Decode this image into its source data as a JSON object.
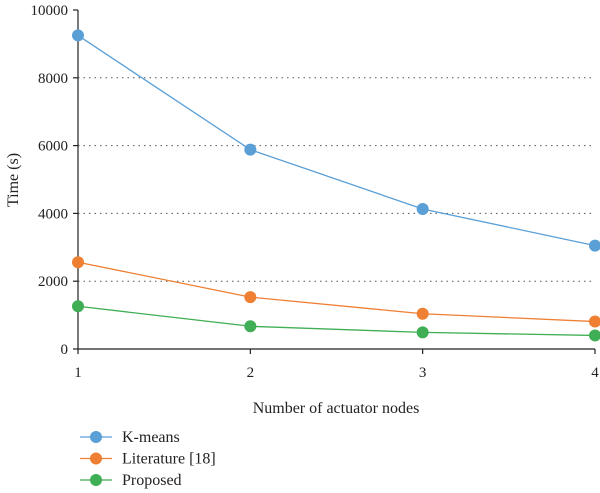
{
  "chart_data": {
    "type": "line",
    "title": "",
    "xlabel": "Number of actuator nodes",
    "ylabel": "Time (s)",
    "x": [
      1,
      2,
      3,
      4
    ],
    "xlim": [
      1,
      4
    ],
    "ylim": [
      0,
      10000
    ],
    "xticks": [
      "1",
      "2",
      "3",
      "4"
    ],
    "yticks": [
      "0",
      "2000",
      "4000",
      "6000",
      "8000",
      "10000"
    ],
    "grid": "horizontal-dotted",
    "legend_position": "bottom-left",
    "series": [
      {
        "name": "K-means",
        "color": "#5a9fd6",
        "values": [
          9250,
          5880,
          4130,
          3050
        ]
      },
      {
        "name": "Literature [18]",
        "color": "#ef7f33",
        "values": [
          2560,
          1530,
          1040,
          810
        ]
      },
      {
        "name": "Proposed",
        "color": "#3fae55",
        "values": [
          1260,
          670,
          490,
          400
        ]
      }
    ]
  }
}
